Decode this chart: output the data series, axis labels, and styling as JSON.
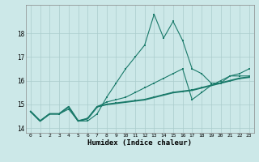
{
  "title": "",
  "xlabel": "Humidex (Indice chaleur)",
  "ylabel": "",
  "bg_color": "#cce8e8",
  "grid_color": "#aacccc",
  "line_color": "#1a7a6a",
  "xlim": [
    -0.5,
    23.5
  ],
  "ylim": [
    13.8,
    19.2
  ],
  "yticks": [
    14,
    15,
    16,
    17,
    18
  ],
  "xticks": [
    0,
    1,
    2,
    3,
    4,
    5,
    6,
    7,
    8,
    9,
    10,
    11,
    12,
    13,
    14,
    15,
    16,
    17,
    18,
    19,
    20,
    21,
    22,
    23
  ],
  "series1": [
    14.7,
    14.3,
    14.6,
    14.6,
    14.8,
    14.3,
    14.3,
    14.6,
    15.3,
    15.9,
    16.5,
    17.0,
    17.5,
    18.8,
    17.8,
    18.5,
    17.7,
    16.5,
    16.3,
    15.9,
    15.9,
    16.2,
    16.2,
    16.2
  ],
  "series2": [
    14.7,
    14.3,
    14.6,
    14.6,
    14.9,
    14.3,
    14.4,
    14.9,
    15.1,
    15.2,
    15.3,
    15.5,
    15.7,
    15.9,
    16.1,
    16.3,
    16.5,
    15.2,
    15.5,
    15.8,
    16.0,
    16.2,
    16.3,
    16.5
  ],
  "series3": [
    14.7,
    14.3,
    14.6,
    14.6,
    14.9,
    14.3,
    14.4,
    14.9,
    15.0,
    15.05,
    15.1,
    15.15,
    15.2,
    15.3,
    15.4,
    15.5,
    15.55,
    15.6,
    15.7,
    15.8,
    15.9,
    16.0,
    16.1,
    16.15
  ]
}
